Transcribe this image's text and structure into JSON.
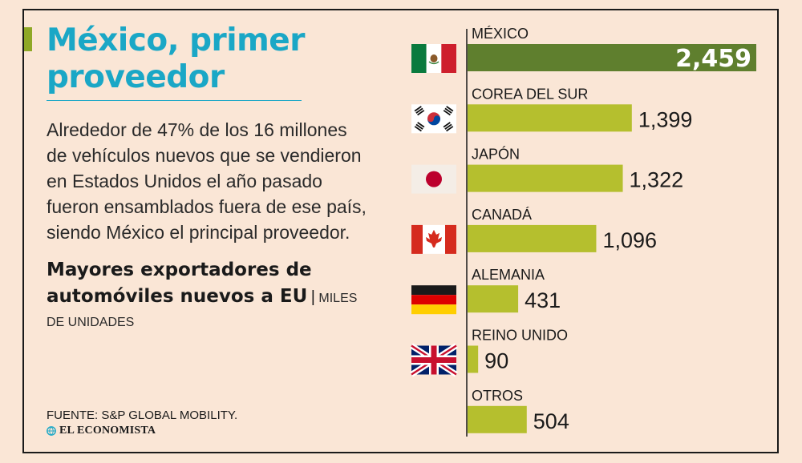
{
  "header": {
    "title_line1": "México, primer",
    "title_line2": "proveedor"
  },
  "description": {
    "line1": "Alrededor de 47% de los 16 millones",
    "line2": "de vehículos nuevos que se vendieron",
    "line3": "en Estados Unidos el año pasado",
    "line4": "fueron ensamblados fuera de ese país,",
    "line5": "siendo México el principal proveedor."
  },
  "subtitle": {
    "line1": "Mayores exportadores de",
    "line2": "automóviles nuevos a EU",
    "separator": "|",
    "units_part1": "MILES",
    "units_part2": "DE UNIDADES"
  },
  "footer": {
    "source": "FUENTE: S&P GLOBAL MOBILITY.",
    "brand": "EL ECONOMISTA"
  },
  "colors": {
    "title": "#1aa7c6",
    "bar": "#b5bf2e",
    "bar_highlight": "#5f7f2e",
    "background": "#fae6d6",
    "text": "#2a2a2a"
  },
  "chart_data": {
    "type": "bar",
    "orientation": "horizontal",
    "title": "Mayores exportadores de automóviles nuevos a EU",
    "units": "MILES DE UNIDADES",
    "categories": [
      "MÉXICO",
      "COREA DEL SUR",
      "JAPÓN",
      "CANADÁ",
      "ALEMANIA",
      "REINO UNIDO",
      "OTROS"
    ],
    "values": [
      2459,
      1399,
      1322,
      1096,
      431,
      90,
      504
    ],
    "value_labels": [
      "2,459",
      "1,399",
      "1,322",
      "1,096",
      "431",
      "90",
      "504"
    ],
    "flags": [
      "mexico-flag",
      "south-korea-flag",
      "japan-flag",
      "canada-flag",
      "germany-flag",
      "united-kingdom-flag",
      ""
    ],
    "highlight_index": 0,
    "xlim": [
      0,
      2459
    ]
  }
}
